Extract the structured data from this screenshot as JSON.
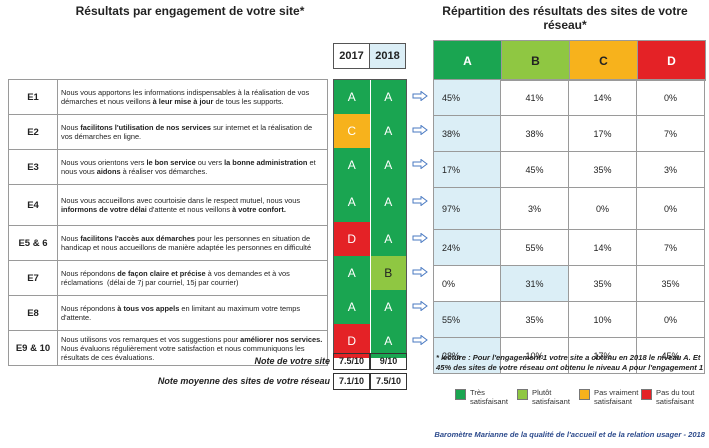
{
  "left_title": "Résultats par engagement de votre site*",
  "right_title_l1": "Répartition des résultats des sites de votre",
  "right_title_l2": "réseau*",
  "years": [
    "2017",
    "2018"
  ],
  "dist_headers": [
    "A",
    "B",
    "C",
    "D"
  ],
  "rows": [
    {
      "code": "E1",
      "desc_html": "Nous vous apportons les informations indispensables à la réalisation de vos démarches et nous veillons <b>à leur mise à jour</b> de tous les supports.",
      "g2017": "A",
      "g2018": "A",
      "dist": [
        "45%",
        "41%",
        "14%",
        "0%"
      ]
    },
    {
      "code": "E2",
      "desc_html": "Nous <b>facilitons l'utilisation de nos services</b> sur internet et la réalisation de vos démarches en ligne.",
      "g2017": "C",
      "g2018": "A",
      "dist": [
        "38%",
        "38%",
        "17%",
        "7%"
      ]
    },
    {
      "code": "E3",
      "desc_html": "Nous vous orientons vers <b>le bon service</b> ou vers <b>la bonne administration</b> et nous vous <b>aidons</b> à réaliser vos démarches.",
      "g2017": "A",
      "g2018": "A",
      "dist": [
        "17%",
        "45%",
        "35%",
        "3%"
      ]
    },
    {
      "code": "E4",
      "desc_html": "Nous vous accueillons avec courtoisie dans le respect mutuel, nous vous <b>informons de votre délai</b> d'attente et nous veillons <b>à votre confort.</b>",
      "g2017": "A",
      "g2018": "A",
      "dist": [
        "97%",
        "3%",
        "0%",
        "0%"
      ]
    },
    {
      "code": "E5 & 6",
      "desc_html": "Nous <b>facilitons l'accès aux démarches</b> pour les personnes en situation de handicap et nous accueillons de manière adaptée les personnes en difficulté",
      "g2017": "D",
      "g2018": "A",
      "dist": [
        "24%",
        "55%",
        "14%",
        "7%"
      ]
    },
    {
      "code": "E7",
      "desc_html": "Nous répondons <b>de façon claire et précise</b> à vos demandes et à vos réclamations&nbsp; (délai de 7j par courriel, 15j par courrier)",
      "g2017": "A",
      "g2018": "B",
      "dist": [
        "0%",
        "31%",
        "35%",
        "35%"
      ]
    },
    {
      "code": "E8",
      "desc_html": "Nous répondons <b>à tous vos appels</b> en limitant au maximum votre temps d'attente.",
      "g2017": "A",
      "g2018": "A",
      "dist": [
        "55%",
        "35%",
        "10%",
        "0%"
      ]
    },
    {
      "code": "E9 & 10",
      "desc_html": "Nous utilisons vos remarques et vos suggestions pour <b>améliorer nos services.</b> Nous évaluons régulièrement votre satisfaction et nous communiquons les résultats de ces évaluations.",
      "g2017": "D",
      "g2018": "A",
      "dist": [
        "28%",
        "10%",
        "17%",
        "45%"
      ]
    }
  ],
  "note_site_label": "Note de votre site",
  "note_site_2017": "7.5/10",
  "note_site_2018": "9/10",
  "note_reseau_label": "Note moyenne des sites de votre réseau",
  "note_reseau_2017": "7.1/10",
  "note_reseau_2018": "7.5/10",
  "lecture": "* lecture : Pour l'engagement 1 votre site a obtenu en 2018 le niveau A. Et 45% des sites de votre réseau ont obtenu le niveau A pour l'engagement 1",
  "legend": [
    {
      "l1": "Très",
      "l2": "satisfaisant",
      "color": "#1aa551"
    },
    {
      "l1": "Plutôt",
      "l2": "satisfaisant",
      "color": "#8fc742"
    },
    {
      "l1": "Pas vraiment",
      "l2": "satisfaisant",
      "color": "#f7b21c"
    },
    {
      "l1": "Pas du tout",
      "l2": "satisfaisant",
      "color": "#e42226"
    }
  ],
  "footer": "Baromètre Marianne de la qualité de l'accueil et de la relation usager - 2018",
  "colors": {
    "A": "#1aa551",
    "B": "#8fc742",
    "C": "#f7b21c",
    "D": "#e42226",
    "highlight": "#dbeef6",
    "year2018": "#dbeef6",
    "footer": "#2c4a8c"
  }
}
